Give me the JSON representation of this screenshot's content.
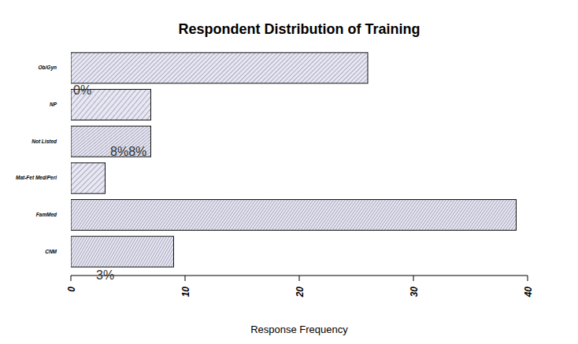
{
  "chart_data": {
    "type": "bar",
    "orientation": "horizontal",
    "title": "Respondent Distribution of Training",
    "x_label": "Response Frequency",
    "categories": [
      "Ob/Gyn",
      "NP",
      "Not Listed",
      "Mat-Fet Med/Peri",
      "FamMed",
      "CNM"
    ],
    "values": [
      26,
      7,
      7,
      3,
      39,
      9
    ],
    "color": "#e8e8f4",
    "xlim": [
      0,
      40
    ],
    "xticks": [
      0,
      10,
      20,
      30,
      40
    ],
    "annotations": [
      "0%",
      "8%8%",
      "3%"
    ],
    "grid": false
  }
}
